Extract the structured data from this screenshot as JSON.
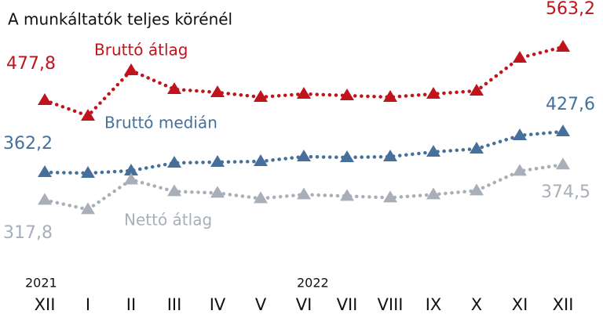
{
  "chart_data": {
    "type": "line",
    "subtitle": "A munkáltatók teljes körénél",
    "categories": [
      "XII",
      "I",
      "II",
      "III",
      "IV",
      "V",
      "VI",
      "VII",
      "VIII",
      "IX",
      "X",
      "XI",
      "XII"
    ],
    "years": [
      "2021",
      "2022"
    ],
    "ylim": [
      280,
      580
    ],
    "series": [
      {
        "name": "Bruttó átlag",
        "color": "#c0141c",
        "values": [
          477.8,
          452.7,
          525.5,
          495.4,
          490.4,
          482.8,
          487.9,
          485.3,
          482.8,
          487.9,
          492.9,
          545.6,
          563.2
        ],
        "value_labels": [
          "477,8",
          null,
          null,
          null,
          null,
          null,
          null,
          null,
          null,
          null,
          null,
          null,
          "563,2"
        ]
      },
      {
        "name": "Bruttó medián",
        "color": "#46709b",
        "values": [
          362.2,
          361,
          364.8,
          377.3,
          378.6,
          379.8,
          387.4,
          386.1,
          387.4,
          394.9,
          399.9,
          421.3,
          427.6
        ],
        "value_labels": [
          "362,2",
          null,
          null,
          null,
          null,
          null,
          null,
          null,
          null,
          null,
          null,
          null,
          "427,6"
        ]
      },
      {
        "name": "Nettó átlag",
        "color": "#a8afb9",
        "values": [
          317.8,
          302.7,
          350.4,
          331.6,
          329.1,
          320.3,
          326.6,
          324.1,
          321.6,
          326.6,
          332.9,
          364.3,
          374.5
        ],
        "value_labels": [
          "317,8",
          null,
          null,
          null,
          null,
          null,
          null,
          null,
          null,
          null,
          null,
          null,
          "374,5"
        ]
      }
    ]
  }
}
